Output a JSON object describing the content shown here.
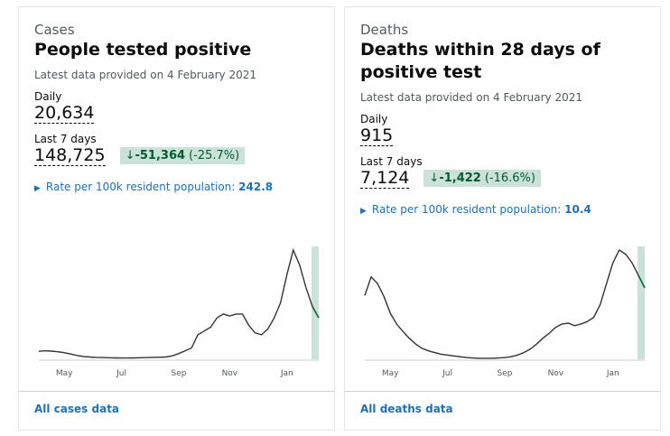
{
  "cards": [
    {
      "category": "Cases",
      "title": "People tested positive",
      "updated": "Latest data provided on 4 February 2021",
      "daily_label": "Daily",
      "daily_value": "20,634",
      "week_label": "Last 7 days",
      "week_value": "148,725",
      "change": "-51,364",
      "change_pct": "(-25.7%)",
      "rate_label": "Rate per 100k resident population:",
      "rate_value": "242.8",
      "link": "All cases data",
      "chart_data": {
        "type": "line",
        "color": "#333333",
        "categories": [
          null,
          null,
          null,
          null,
          "May",
          null,
          null,
          null,
          null,
          null,
          null,
          null,
          null,
          "Jul",
          null,
          null,
          null,
          null,
          null,
          null,
          null,
          null,
          "Sep",
          null,
          null,
          null,
          null,
          null,
          null,
          null,
          "Nov",
          null,
          null,
          null,
          null,
          null,
          null,
          null,
          null,
          "Jan",
          null,
          null,
          null,
          null,
          null
        ],
        "values": [
          4200,
          4500,
          4300,
          4000,
          3500,
          2800,
          2000,
          1500,
          1200,
          1000,
          900,
          800,
          700,
          650,
          650,
          700,
          800,
          900,
          1000,
          1100,
          1200,
          1800,
          3000,
          4500,
          6000,
          13000,
          15000,
          17000,
          22000,
          24000,
          23000,
          24000,
          24000,
          18000,
          14000,
          13000,
          16000,
          22000,
          30000,
          45000,
          58000,
          50000,
          38000,
          28000,
          22000
        ]
      }
    },
    {
      "category": "Deaths",
      "title": "Deaths within 28 days of positive test",
      "updated": "Latest data provided on 4 February 2021",
      "daily_label": "Daily",
      "daily_value": "915",
      "week_label": "Last 7 days",
      "week_value": "7,124",
      "change": "-1,422",
      "change_pct": "(-16.6%)",
      "rate_label": "Rate per 100k resident population:",
      "rate_value": "10.4",
      "link": "All deaths data",
      "chart_data": {
        "type": "line",
        "color": "#333333",
        "categories": [
          null,
          null,
          null,
          null,
          "May",
          null,
          null,
          null,
          null,
          null,
          null,
          null,
          null,
          "Jul",
          null,
          null,
          null,
          null,
          null,
          null,
          null,
          null,
          "Sep",
          null,
          null,
          null,
          null,
          null,
          null,
          null,
          "Nov",
          null,
          null,
          null,
          null,
          null,
          null,
          null,
          null,
          "Jan",
          null,
          null,
          null,
          null,
          null
        ],
        "values": [
          760,
          980,
          900,
          750,
          550,
          420,
          330,
          250,
          180,
          130,
          100,
          80,
          60,
          50,
          40,
          30,
          20,
          15,
          12,
          12,
          12,
          15,
          20,
          30,
          50,
          80,
          120,
          180,
          250,
          310,
          380,
          420,
          430,
          400,
          420,
          450,
          500,
          650,
          900,
          1150,
          1300,
          1250,
          1150,
          1000,
          850
        ]
      }
    }
  ]
}
